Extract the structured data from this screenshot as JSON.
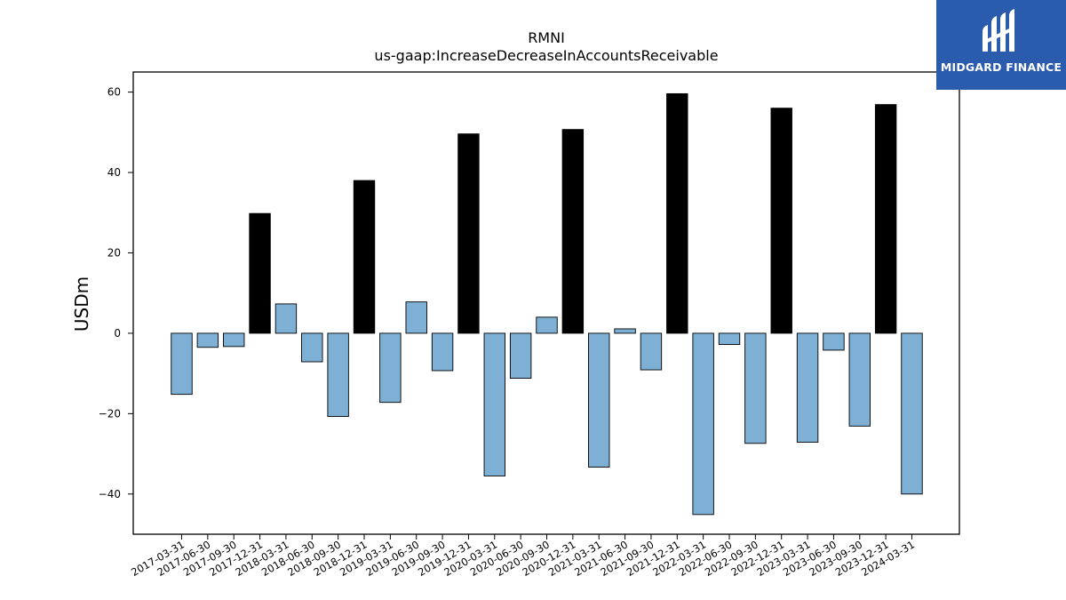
{
  "chart_data": {
    "type": "bar",
    "title": "RMNI",
    "subtitle": "us-gaap:IncreaseDecreaseInAccountsReceivable",
    "ylabel": "USDm",
    "xlabel": "",
    "ylim": [
      -50,
      65
    ],
    "yticks": [
      60,
      40,
      20,
      0,
      -20,
      -40
    ],
    "ytick_labels": [
      "60",
      "40",
      "20",
      "0",
      "−20",
      "−40"
    ],
    "grid": false,
    "categories": [
      "2017-03-31",
      "2017-06-30",
      "2017-09-30",
      "2017-12-31",
      "2018-03-31",
      "2018-06-30",
      "2018-09-30",
      "2018-12-31",
      "2019-03-31",
      "2019-06-30",
      "2019-09-30",
      "2019-12-31",
      "2020-03-31",
      "2020-06-30",
      "2020-09-30",
      "2020-12-31",
      "2021-03-31",
      "2021-06-30",
      "2021-09-30",
      "2021-12-31",
      "2022-03-31",
      "2022-06-30",
      "2022-09-30",
      "2022-12-31",
      "2023-03-31",
      "2023-06-30",
      "2023-09-30",
      "2023-12-31",
      "2024-03-31"
    ],
    "values": [
      -15.2,
      -3.5,
      -3.3,
      29.8,
      7.3,
      -7.1,
      -20.7,
      38.0,
      -17.2,
      7.8,
      -9.3,
      49.6,
      -35.5,
      -11.2,
      4.0,
      50.7,
      -33.3,
      1.1,
      -9.1,
      59.6,
      -45.1,
      -2.8,
      -27.4,
      56.0,
      -27.1,
      -4.2,
      -23.1,
      56.9,
      -40.0
    ],
    "bar_color_quarterly": "#7eb0d5",
    "bar_color_annual": "#000000",
    "annual_flags": [
      false,
      false,
      false,
      true,
      false,
      false,
      false,
      true,
      false,
      false,
      false,
      true,
      false,
      false,
      false,
      true,
      false,
      false,
      false,
      true,
      false,
      false,
      false,
      true,
      false,
      false,
      false,
      true,
      false
    ]
  },
  "logo": {
    "text": "MIDGARD FINANCE",
    "background": "#2b5bad",
    "icon": "midgard-logo-icon"
  }
}
